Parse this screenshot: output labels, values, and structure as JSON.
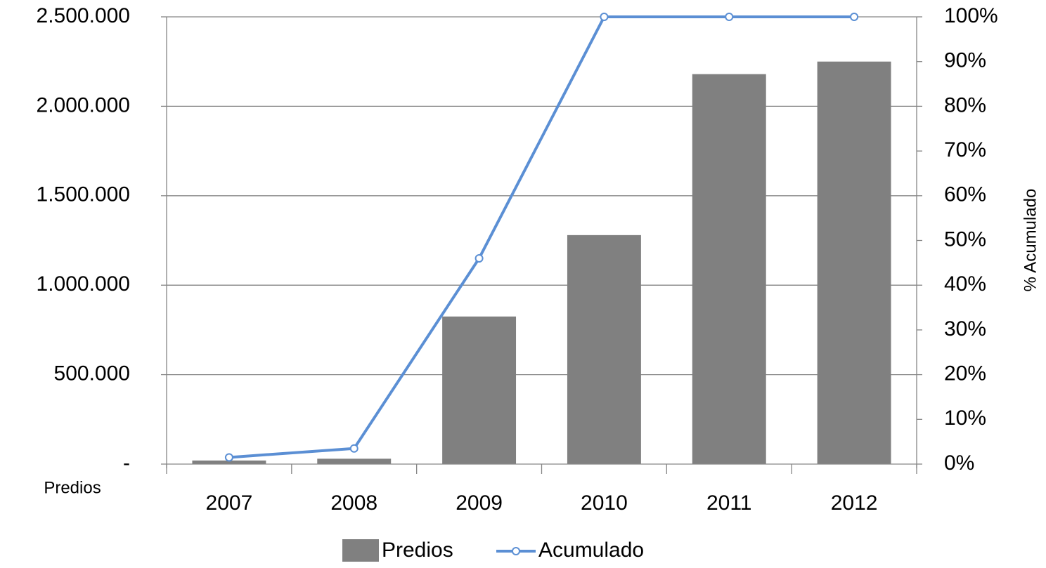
{
  "chart_data": {
    "type": "bar",
    "categories": [
      "2007",
      "2008",
      "2009",
      "2010",
      "2011",
      "2012"
    ],
    "series": [
      {
        "name": "Predios",
        "type": "bar",
        "axis": "left",
        "color": "#808080",
        "values": [
          20000,
          30000,
          825000,
          1280000,
          2180000,
          2250000
        ]
      },
      {
        "name": "Acumulado",
        "type": "line",
        "axis": "right",
        "color": "#5B8FD4",
        "marker": "open-circle",
        "values": [
          0.015,
          0.035,
          0.46,
          1.0,
          1.0,
          1.0
        ]
      }
    ],
    "ylabel": "Predios",
    "y2label": "% Acumulado",
    "ylim": [
      0,
      2500000
    ],
    "y2lim": [
      0,
      1
    ],
    "y_ticks": [
      "-",
      "500.000",
      "1.000.000",
      "1.500.000",
      "2.000.000",
      "2.500.000"
    ],
    "y2_ticks": [
      "0%",
      "10%",
      "20%",
      "30%",
      "40%",
      "50%",
      "60%",
      "70%",
      "80%",
      "90%",
      "100%"
    ],
    "grid": true,
    "legend_position": "bottom"
  }
}
